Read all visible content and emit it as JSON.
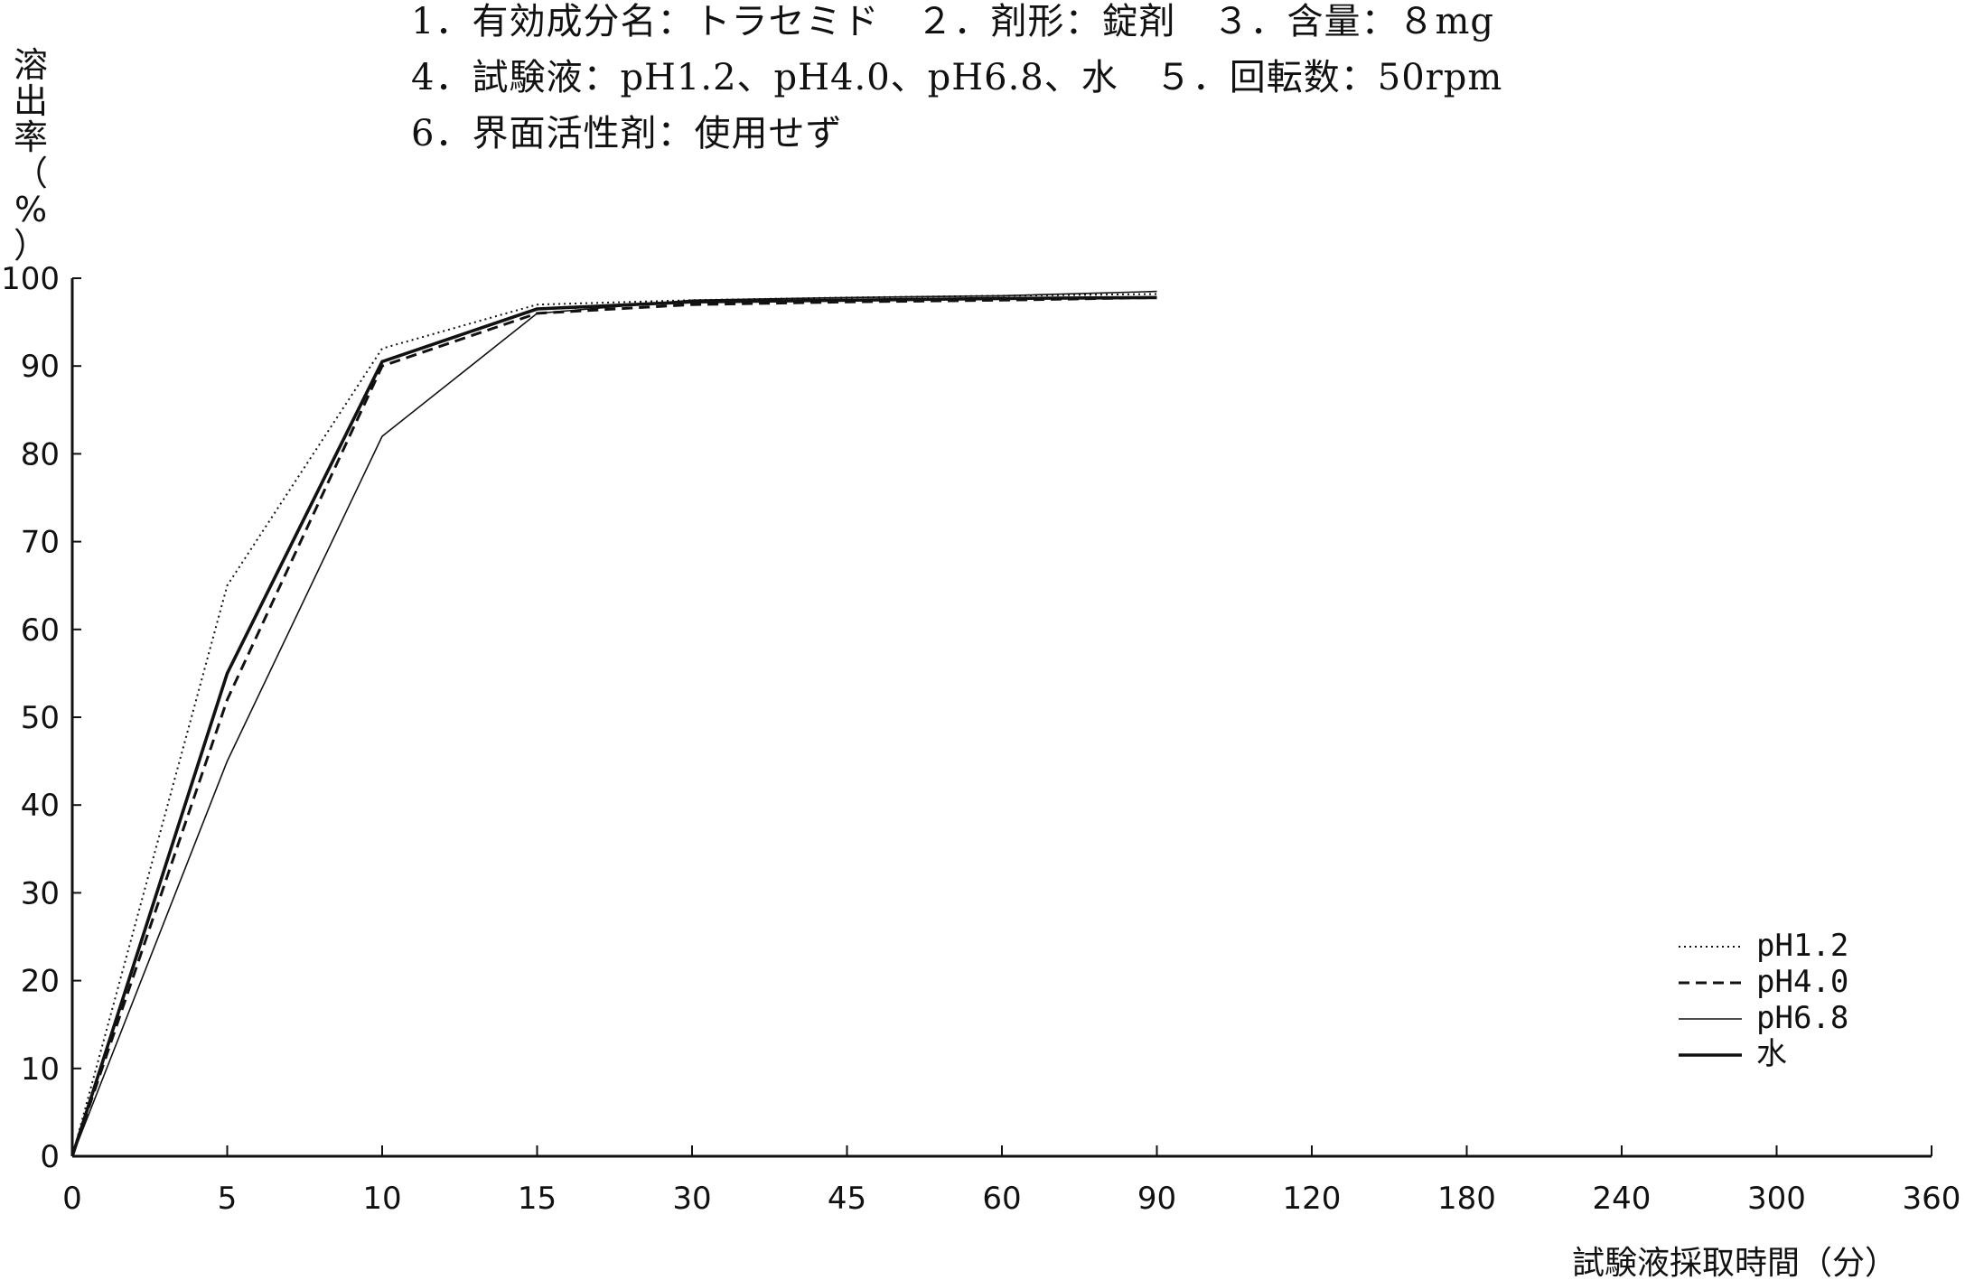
{
  "header": {
    "line1": "1．有効成分名：トラセミド　２．剤形：錠剤　３．含量：８mg",
    "line2": "4．試験液：pH1.2、pH4.0、pH6.8、水　５．回転数：50rpm",
    "line3": "6．界面活性剤：使用せず"
  },
  "chart_data": {
    "type": "line",
    "ylabel": "溶出率（%）",
    "ylabel_chars": [
      "溶",
      "出",
      "率",
      "（",
      "%",
      "）"
    ],
    "xlabel": "試験液採取時間（分）",
    "x": [
      "0",
      "5",
      "10",
      "15",
      "30",
      "45",
      "60",
      "90",
      "120",
      "180",
      "240",
      "300",
      "360"
    ],
    "ylim": [
      0,
      100
    ],
    "yticks": [
      "0",
      "10",
      "20",
      "30",
      "40",
      "50",
      "60",
      "70",
      "80",
      "90",
      "100"
    ],
    "legend_position": "bottom-right",
    "series": [
      {
        "name": "pH1.2",
        "style": "dotted",
        "values": [
          0,
          65,
          92,
          97,
          97.5,
          97.8,
          98,
          98.2,
          null,
          null,
          null,
          null,
          null
        ]
      },
      {
        "name": "pH4.0",
        "style": "dashed",
        "values": [
          0,
          52,
          90,
          96,
          97,
          97.3,
          97.5,
          97.8,
          null,
          null,
          null,
          null,
          null
        ]
      },
      {
        "name": "pH6.8",
        "style": "thin",
        "values": [
          0,
          45,
          82,
          96,
          97.5,
          97.8,
          98,
          98.5,
          null,
          null,
          null,
          null,
          null
        ]
      },
      {
        "name": "水",
        "style": "thick",
        "values": [
          0,
          55,
          90.5,
          96.5,
          97.3,
          97.5,
          97.7,
          97.8,
          null,
          null,
          null,
          null,
          null
        ]
      }
    ]
  }
}
